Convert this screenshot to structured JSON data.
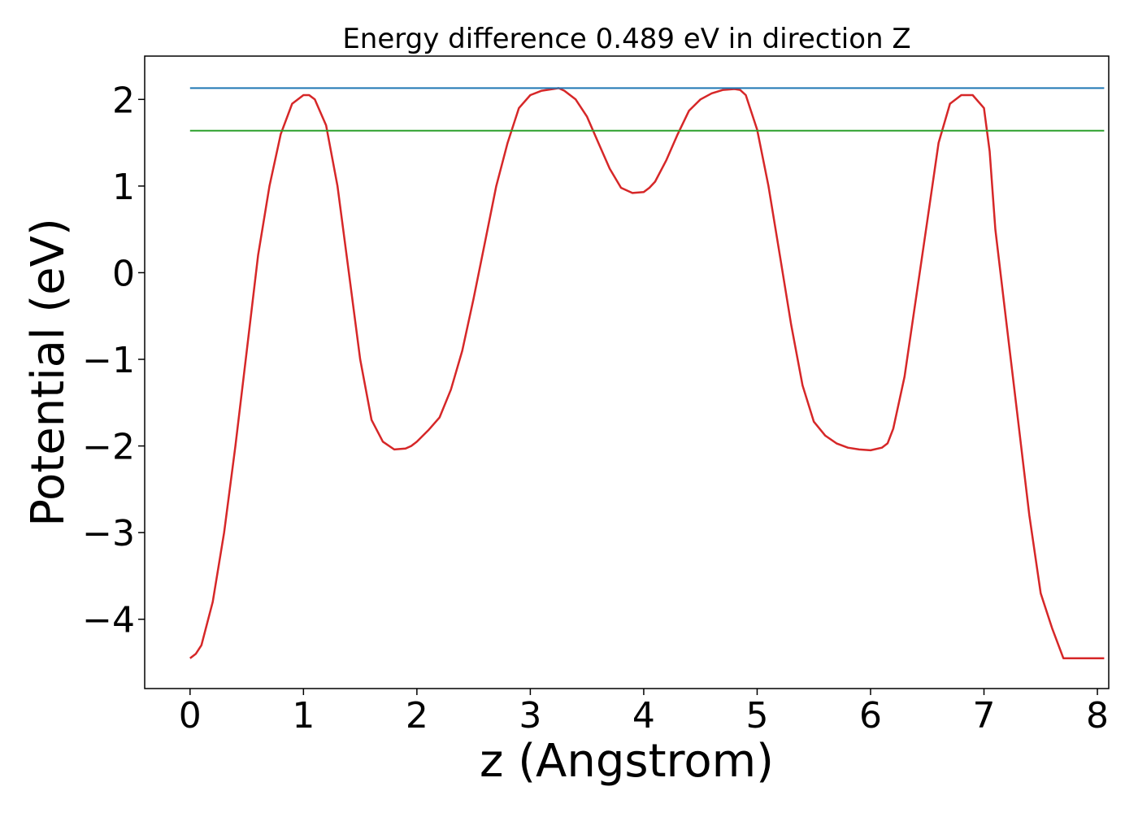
{
  "chart_data": {
    "type": "line",
    "title": "Energy difference 0.489 eV in direction Z",
    "xlabel": "z (Angstrom)",
    "ylabel": "Potential (eV)",
    "xlim": [
      -0.4,
      8.1
    ],
    "ylim": [
      -4.8,
      2.5
    ],
    "x_ticks": [
      0,
      1,
      2,
      3,
      4,
      5,
      6,
      7,
      8
    ],
    "x_tick_labels": [
      "0",
      "1",
      "2",
      "3",
      "4",
      "5",
      "6",
      "7",
      "8"
    ],
    "y_ticks": [
      -4,
      -3,
      -2,
      -1,
      0,
      1,
      2
    ],
    "y_tick_labels": [
      "−4",
      "−3",
      "−2",
      "−1",
      "0",
      "1",
      "2"
    ],
    "grid": false,
    "legend": "none",
    "series": [
      {
        "color": "#d62728",
        "x": [
          0.0,
          0.05,
          0.1,
          0.2,
          0.3,
          0.4,
          0.5,
          0.6,
          0.7,
          0.8,
          0.9,
          1.0,
          1.05,
          1.1,
          1.2,
          1.3,
          1.4,
          1.5,
          1.6,
          1.7,
          1.8,
          1.9,
          1.95,
          2.0,
          2.1,
          2.2,
          2.3,
          2.4,
          2.5,
          2.6,
          2.7,
          2.8,
          2.9,
          3.0,
          3.1,
          3.2,
          3.25,
          3.3,
          3.4,
          3.5,
          3.6,
          3.7,
          3.8,
          3.9,
          4.0,
          4.05,
          4.1,
          4.2,
          4.3,
          4.4,
          4.5,
          4.6,
          4.7,
          4.8,
          4.85,
          4.9,
          5.0,
          5.1,
          5.2,
          5.3,
          5.4,
          5.5,
          5.6,
          5.7,
          5.8,
          5.9,
          6.0,
          6.1,
          6.15,
          6.2,
          6.3,
          6.4,
          6.5,
          6.6,
          6.7,
          6.8,
          6.9,
          7.0,
          7.05,
          7.1,
          7.2,
          7.3,
          7.4,
          7.5,
          7.6,
          7.7,
          7.8,
          7.9,
          8.0,
          8.06
        ],
        "y": [
          -4.45,
          -4.4,
          -4.3,
          -3.8,
          -3.0,
          -2.0,
          -0.9,
          0.2,
          1.0,
          1.6,
          1.95,
          2.05,
          2.05,
          2.0,
          1.7,
          1.0,
          0.0,
          -1.0,
          -1.7,
          -1.95,
          -2.04,
          -2.03,
          -2.0,
          -1.95,
          -1.82,
          -1.67,
          -1.35,
          -0.9,
          -0.3,
          0.35,
          1.0,
          1.5,
          1.9,
          2.05,
          2.1,
          2.12,
          2.13,
          2.1,
          2.0,
          1.8,
          1.5,
          1.2,
          0.98,
          0.92,
          0.93,
          0.98,
          1.05,
          1.3,
          1.6,
          1.87,
          2.0,
          2.07,
          2.11,
          2.12,
          2.11,
          2.05,
          1.65,
          1.0,
          0.2,
          -0.6,
          -1.3,
          -1.72,
          -1.88,
          -1.97,
          -2.02,
          -2.04,
          -2.05,
          -2.02,
          -1.97,
          -1.8,
          -1.2,
          -0.3,
          0.6,
          1.5,
          1.95,
          2.05,
          2.05,
          1.9,
          1.4,
          0.5,
          -0.6,
          -1.7,
          -2.8,
          -3.7,
          -4.1,
          -4.45,
          -4.45,
          -4.45,
          -4.45,
          -4.45
        ]
      },
      {
        "color": "#1f77b4",
        "x": [
          0.0,
          8.06
        ],
        "y": [
          2.13,
          2.13
        ]
      },
      {
        "color": "#2ca02c",
        "x": [
          0.0,
          8.06
        ],
        "y": [
          1.64,
          1.64
        ]
      }
    ]
  }
}
